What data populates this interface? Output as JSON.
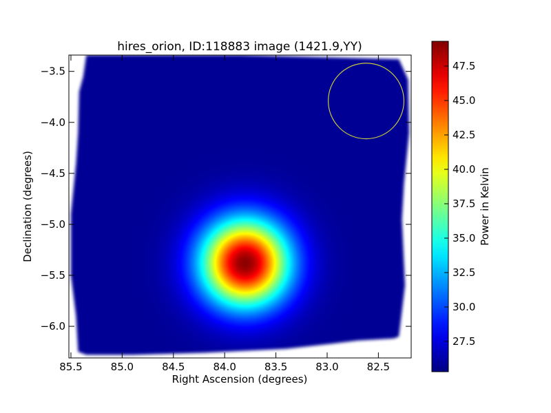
{
  "chart_data": {
    "type": "heatmap",
    "title": "hires_orion, ID:118883 image (1421.9,YY)",
    "xlabel": "Right Ascension (degrees)",
    "ylabel": "Declination (degrees)",
    "xlim": [
      85.52,
      82.18
    ],
    "ylim": [
      -6.31,
      -3.34
    ],
    "x_ticks": [
      85.5,
      85.0,
      84.5,
      84.0,
      83.5,
      83.0,
      82.5
    ],
    "x_tick_labels": [
      "85.5",
      "85.0",
      "84.5",
      "84.0",
      "83.5",
      "83.0",
      "82.5"
    ],
    "y_ticks": [
      -3.5,
      -4.0,
      -4.5,
      -5.0,
      -5.5,
      -6.0
    ],
    "y_tick_labels": [
      "−3.5",
      "−4.0",
      "−4.5",
      "−5.0",
      "−5.5",
      "−6.0"
    ],
    "colormap": "jet",
    "colorbar": {
      "label": "Power in Kelvin",
      "vmin": 25.3,
      "vmax": 49.3,
      "ticks": [
        27.5,
        30.0,
        32.5,
        35.0,
        37.5,
        40.0,
        42.5,
        45.0,
        47.5
      ],
      "tick_labels": [
        "27.5",
        "30.0",
        "32.5",
        "35.0",
        "37.5",
        "40.0",
        "42.5",
        "45.0",
        "47.5"
      ]
    },
    "background_level": 25.8,
    "coverage_polygon": [
      [
        85.35,
        -3.34
      ],
      [
        83.85,
        -3.34
      ],
      [
        82.3,
        -3.38
      ],
      [
        82.21,
        -3.58
      ],
      [
        82.2,
        -4.1
      ],
      [
        82.25,
        -4.6
      ],
      [
        82.27,
        -4.95
      ],
      [
        82.24,
        -5.6
      ],
      [
        82.3,
        -6.1
      ],
      [
        82.35,
        -6.12
      ],
      [
        82.7,
        -6.14
      ],
      [
        82.95,
        -6.17
      ],
      [
        83.4,
        -6.22
      ],
      [
        84.2,
        -6.26
      ],
      [
        84.9,
        -6.28
      ],
      [
        85.35,
        -6.28
      ],
      [
        85.43,
        -6.25
      ],
      [
        85.45,
        -5.9
      ],
      [
        85.5,
        -5.5
      ],
      [
        85.5,
        -4.9
      ],
      [
        85.45,
        -4.4
      ],
      [
        85.43,
        -4.1
      ],
      [
        85.42,
        -3.7
      ],
      [
        85.38,
        -3.55
      ]
    ],
    "source": {
      "center_ra": 83.8,
      "center_dec": -5.38,
      "peak": 49.0,
      "sigma_ra": 0.3,
      "sigma_dec": 0.3
    },
    "beam_circle": {
      "center_ra": 82.62,
      "center_dec": -3.79,
      "radius_deg": 0.37,
      "color": "#c8c83c"
    },
    "grid": false
  }
}
